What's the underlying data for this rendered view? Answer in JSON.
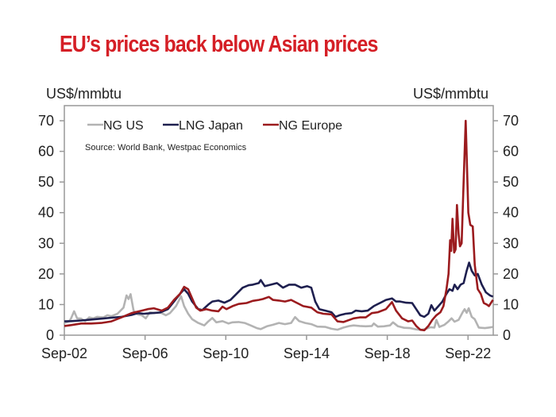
{
  "chart_data": {
    "type": "line",
    "title": "EU’s prices back below Asian prices",
    "ylabel_left": "US$/mmbtu",
    "ylabel_right": "US$/mmbtu",
    "xlabel": "",
    "source": "Source: World Bank, Westpac Economics",
    "ylim": [
      0,
      70
    ],
    "yticks": [
      0,
      10,
      20,
      30,
      40,
      50,
      60,
      70
    ],
    "xlim": [
      2002.667,
      2023.917
    ],
    "xticks": [
      {
        "x": 2002.667,
        "label": "Sep-02"
      },
      {
        "x": 2006.667,
        "label": "Sep-06"
      },
      {
        "x": 2010.667,
        "label": "Sep-10"
      },
      {
        "x": 2014.667,
        "label": "Sep-14"
      },
      {
        "x": 2018.667,
        "label": "Sep-18"
      },
      {
        "x": 2022.667,
        "label": "Sep-22"
      }
    ],
    "legend_position": "top-left",
    "grid": false,
    "series": [
      {
        "name": "NG US",
        "color": "#b3b3b3",
        "points": [
          [
            2002.67,
            4.0
          ],
          [
            2002.9,
            4.5
          ],
          [
            2003.0,
            5.5
          ],
          [
            2003.15,
            7.8
          ],
          [
            2003.3,
            5.5
          ],
          [
            2003.5,
            5.4
          ],
          [
            2003.7,
            4.6
          ],
          [
            2003.9,
            5.8
          ],
          [
            2004.1,
            5.5
          ],
          [
            2004.3,
            6.0
          ],
          [
            2004.6,
            5.8
          ],
          [
            2004.8,
            6.5
          ],
          [
            2005.0,
            6.2
          ],
          [
            2005.3,
            7.0
          ],
          [
            2005.6,
            9.0
          ],
          [
            2005.75,
            13.0
          ],
          [
            2005.85,
            11.8
          ],
          [
            2005.95,
            13.4
          ],
          [
            2006.1,
            8.0
          ],
          [
            2006.3,
            6.8
          ],
          [
            2006.5,
            6.5
          ],
          [
            2006.7,
            5.5
          ],
          [
            2006.9,
            7.5
          ],
          [
            2007.1,
            7.2
          ],
          [
            2007.4,
            7.5
          ],
          [
            2007.7,
            6.5
          ],
          [
            2007.9,
            7.2
          ],
          [
            2008.2,
            9.5
          ],
          [
            2008.45,
            12.7
          ],
          [
            2008.6,
            9.5
          ],
          [
            2008.8,
            7.0
          ],
          [
            2009.0,
            5.2
          ],
          [
            2009.3,
            4.0
          ],
          [
            2009.6,
            3.2
          ],
          [
            2009.8,
            4.5
          ],
          [
            2010.0,
            5.6
          ],
          [
            2010.2,
            4.2
          ],
          [
            2010.5,
            4.6
          ],
          [
            2010.8,
            3.8
          ],
          [
            2011.0,
            4.2
          ],
          [
            2011.3,
            4.3
          ],
          [
            2011.6,
            4.0
          ],
          [
            2011.9,
            3.2
          ],
          [
            2012.2,
            2.3
          ],
          [
            2012.4,
            2.0
          ],
          [
            2012.7,
            2.9
          ],
          [
            2013.0,
            3.4
          ],
          [
            2013.3,
            4.0
          ],
          [
            2013.6,
            3.6
          ],
          [
            2013.9,
            4.0
          ],
          [
            2014.1,
            5.9
          ],
          [
            2014.3,
            4.6
          ],
          [
            2014.6,
            4.0
          ],
          [
            2014.9,
            3.6
          ],
          [
            2015.2,
            2.8
          ],
          [
            2015.6,
            2.7
          ],
          [
            2015.9,
            2.1
          ],
          [
            2016.2,
            1.8
          ],
          [
            2016.5,
            2.5
          ],
          [
            2016.8,
            3.0
          ],
          [
            2017.0,
            3.2
          ],
          [
            2017.3,
            3.0
          ],
          [
            2017.6,
            2.9
          ],
          [
            2017.9,
            3.0
          ],
          [
            2018.0,
            3.8
          ],
          [
            2018.2,
            2.8
          ],
          [
            2018.5,
            2.9
          ],
          [
            2018.8,
            3.2
          ],
          [
            2018.95,
            4.2
          ],
          [
            2019.2,
            2.9
          ],
          [
            2019.5,
            2.4
          ],
          [
            2019.8,
            2.3
          ],
          [
            2020.1,
            1.9
          ],
          [
            2020.35,
            1.7
          ],
          [
            2020.6,
            2.1
          ],
          [
            2020.8,
            2.6
          ],
          [
            2021.0,
            2.5
          ],
          [
            2021.1,
            5.0
          ],
          [
            2021.25,
            2.7
          ],
          [
            2021.5,
            3.4
          ],
          [
            2021.7,
            4.5
          ],
          [
            2021.85,
            5.5
          ],
          [
            2022.0,
            4.4
          ],
          [
            2022.2,
            5.0
          ],
          [
            2022.4,
            7.5
          ],
          [
            2022.5,
            8.5
          ],
          [
            2022.6,
            7.3
          ],
          [
            2022.7,
            8.8
          ],
          [
            2022.85,
            6.0
          ],
          [
            2023.0,
            5.2
          ],
          [
            2023.2,
            2.5
          ],
          [
            2023.5,
            2.3
          ],
          [
            2023.7,
            2.5
          ],
          [
            2023.9,
            2.7
          ]
        ]
      },
      {
        "name": "LNG Japan",
        "color": "#1e1f4f",
        "points": [
          [
            2002.67,
            4.5
          ],
          [
            2003.0,
            4.6
          ],
          [
            2003.5,
            4.8
          ],
          [
            2004.0,
            5.1
          ],
          [
            2004.5,
            5.4
          ],
          [
            2005.0,
            5.7
          ],
          [
            2005.5,
            6.0
          ],
          [
            2006.0,
            6.6
          ],
          [
            2006.3,
            7.2
          ],
          [
            2006.6,
            7.0
          ],
          [
            2007.0,
            7.2
          ],
          [
            2007.4,
            7.4
          ],
          [
            2007.8,
            8.5
          ],
          [
            2008.1,
            11.0
          ],
          [
            2008.4,
            13.5
          ],
          [
            2008.6,
            15.0
          ],
          [
            2008.8,
            13.5
          ],
          [
            2009.0,
            11.0
          ],
          [
            2009.3,
            8.5
          ],
          [
            2009.5,
            8.2
          ],
          [
            2009.8,
            10.0
          ],
          [
            2010.0,
            11.0
          ],
          [
            2010.3,
            11.3
          ],
          [
            2010.6,
            10.6
          ],
          [
            2010.9,
            11.5
          ],
          [
            2011.2,
            13.5
          ],
          [
            2011.5,
            15.5
          ],
          [
            2011.8,
            16.3
          ],
          [
            2012.0,
            16.5
          ],
          [
            2012.3,
            17.0
          ],
          [
            2012.4,
            18.0
          ],
          [
            2012.6,
            16.0
          ],
          [
            2012.9,
            16.5
          ],
          [
            2013.2,
            17.0
          ],
          [
            2013.5,
            15.5
          ],
          [
            2013.8,
            16.5
          ],
          [
            2014.1,
            16.5
          ],
          [
            2014.4,
            15.5
          ],
          [
            2014.7,
            16.0
          ],
          [
            2014.9,
            15.5
          ],
          [
            2015.1,
            11.0
          ],
          [
            2015.3,
            8.5
          ],
          [
            2015.6,
            8.0
          ],
          [
            2015.9,
            7.5
          ],
          [
            2016.1,
            6.0
          ],
          [
            2016.3,
            6.5
          ],
          [
            2016.6,
            7.0
          ],
          [
            2016.9,
            7.2
          ],
          [
            2017.1,
            8.0
          ],
          [
            2017.4,
            7.8
          ],
          [
            2017.7,
            8.0
          ],
          [
            2018.0,
            9.5
          ],
          [
            2018.3,
            10.5
          ],
          [
            2018.6,
            11.5
          ],
          [
            2018.9,
            12.0
          ],
          [
            2019.1,
            11.0
          ],
          [
            2019.3,
            11.0
          ],
          [
            2019.6,
            10.6
          ],
          [
            2019.9,
            10.5
          ],
          [
            2020.1,
            8.5
          ],
          [
            2020.3,
            6.5
          ],
          [
            2020.5,
            6.0
          ],
          [
            2020.7,
            7.0
          ],
          [
            2020.85,
            9.8
          ],
          [
            2021.0,
            8.0
          ],
          [
            2021.2,
            9.5
          ],
          [
            2021.4,
            11.0
          ],
          [
            2021.6,
            13.5
          ],
          [
            2021.75,
            15.0
          ],
          [
            2021.9,
            14.5
          ],
          [
            2022.0,
            16.5
          ],
          [
            2022.15,
            15.0
          ],
          [
            2022.3,
            16.5
          ],
          [
            2022.45,
            17.0
          ],
          [
            2022.6,
            21.0
          ],
          [
            2022.72,
            23.7
          ],
          [
            2022.85,
            21.0
          ],
          [
            2023.0,
            19.5
          ],
          [
            2023.15,
            20.0
          ],
          [
            2023.35,
            16.5
          ],
          [
            2023.55,
            14.0
          ],
          [
            2023.75,
            13.0
          ],
          [
            2023.9,
            12.6
          ]
        ]
      },
      {
        "name": "NG Europe",
        "color": "#9b1b1e",
        "points": [
          [
            2002.67,
            3.0
          ],
          [
            2003.0,
            3.3
          ],
          [
            2003.5,
            3.8
          ],
          [
            2004.0,
            3.8
          ],
          [
            2004.5,
            4.0
          ],
          [
            2005.0,
            4.5
          ],
          [
            2005.5,
            5.8
          ],
          [
            2006.0,
            7.2
          ],
          [
            2006.5,
            8.0
          ],
          [
            2006.8,
            8.5
          ],
          [
            2007.1,
            8.8
          ],
          [
            2007.5,
            8.0
          ],
          [
            2007.8,
            9.0
          ],
          [
            2008.1,
            11.5
          ],
          [
            2008.4,
            13.5
          ],
          [
            2008.6,
            15.8
          ],
          [
            2008.8,
            15.0
          ],
          [
            2009.0,
            12.0
          ],
          [
            2009.2,
            9.0
          ],
          [
            2009.4,
            8.0
          ],
          [
            2009.7,
            8.5
          ],
          [
            2010.0,
            8.0
          ],
          [
            2010.3,
            7.8
          ],
          [
            2010.5,
            9.3
          ],
          [
            2010.7,
            8.5
          ],
          [
            2011.0,
            9.5
          ],
          [
            2011.3,
            10.2
          ],
          [
            2011.7,
            10.5
          ],
          [
            2012.0,
            11.2
          ],
          [
            2012.3,
            11.5
          ],
          [
            2012.5,
            11.8
          ],
          [
            2012.8,
            12.5
          ],
          [
            2013.0,
            11.5
          ],
          [
            2013.3,
            11.3
          ],
          [
            2013.6,
            11.0
          ],
          [
            2013.9,
            11.5
          ],
          [
            2014.2,
            10.5
          ],
          [
            2014.5,
            9.5
          ],
          [
            2014.9,
            9.0
          ],
          [
            2015.2,
            7.5
          ],
          [
            2015.5,
            7.0
          ],
          [
            2015.9,
            6.8
          ],
          [
            2016.2,
            4.5
          ],
          [
            2016.5,
            4.3
          ],
          [
            2016.8,
            5.0
          ],
          [
            2017.0,
            5.5
          ],
          [
            2017.3,
            5.8
          ],
          [
            2017.6,
            5.8
          ],
          [
            2017.9,
            7.2
          ],
          [
            2018.2,
            7.5
          ],
          [
            2018.6,
            8.5
          ],
          [
            2018.9,
            10.8
          ],
          [
            2019.1,
            8.0
          ],
          [
            2019.4,
            5.5
          ],
          [
            2019.7,
            4.5
          ],
          [
            2019.9,
            4.8
          ],
          [
            2020.1,
            3.0
          ],
          [
            2020.3,
            1.8
          ],
          [
            2020.5,
            1.6
          ],
          [
            2020.7,
            3.0
          ],
          [
            2020.9,
            5.0
          ],
          [
            2021.1,
            6.5
          ],
          [
            2021.3,
            7.5
          ],
          [
            2021.45,
            9.5
          ],
          [
            2021.6,
            15.0
          ],
          [
            2021.7,
            20.0
          ],
          [
            2021.78,
            31.0
          ],
          [
            2021.83,
            27.5
          ],
          [
            2021.9,
            38.0
          ],
          [
            2021.98,
            27.0
          ],
          [
            2022.05,
            28.0
          ],
          [
            2022.12,
            42.5
          ],
          [
            2022.2,
            33.0
          ],
          [
            2022.27,
            29.0
          ],
          [
            2022.35,
            30.0
          ],
          [
            2022.45,
            50.0
          ],
          [
            2022.55,
            70.0
          ],
          [
            2022.68,
            40.0
          ],
          [
            2022.78,
            36.0
          ],
          [
            2022.9,
            35.5
          ],
          [
            2023.0,
            23.0
          ],
          [
            2023.15,
            15.0
          ],
          [
            2023.3,
            13.5
          ],
          [
            2023.45,
            10.5
          ],
          [
            2023.6,
            10.0
          ],
          [
            2023.7,
            9.5
          ],
          [
            2023.85,
            11.0
          ],
          [
            2023.9,
            11.5
          ]
        ]
      }
    ]
  }
}
